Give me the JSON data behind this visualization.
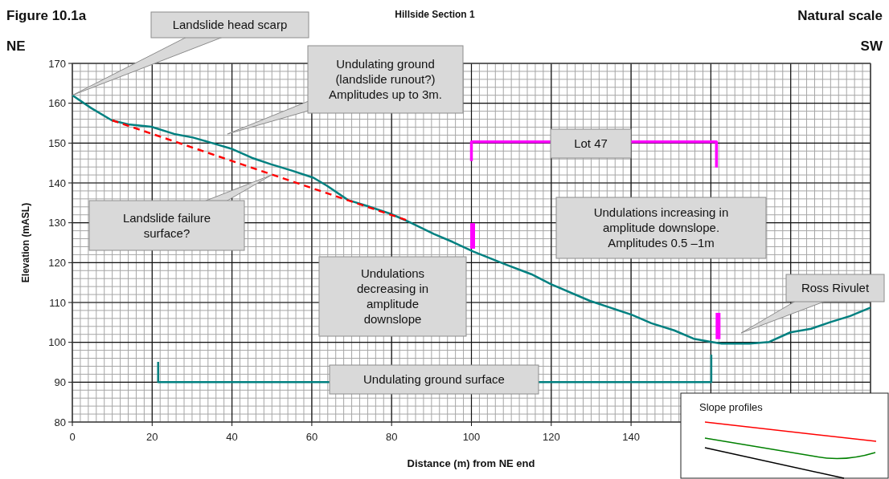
{
  "chart_data": {
    "type": "line",
    "title": "Hillside Section 1",
    "xlabel": "Distance (m) from NE end",
    "ylabel": "Elevation (mASL)",
    "xlim": [
      0,
      200
    ],
    "ylim": [
      80,
      170
    ],
    "xticks": [
      0,
      20,
      40,
      60,
      80,
      100,
      120,
      140,
      {
        "value": 160,
        "label": null
      },
      {
        "value": 180,
        "label": null
      },
      {
        "value": 200,
        "label": null
      }
    ],
    "yticks": [
      80,
      90,
      100,
      110,
      120,
      130,
      140,
      150,
      160,
      170
    ],
    "grid": true,
    "series": [
      {
        "color": "#008080",
        "x": [
          0,
          4.7,
          9.9,
          14,
          19.8,
          25.5,
          30.2,
          34.4,
          40.1,
          45,
          49.7,
          55,
          60.4,
          63.8,
          69.1,
          73.9,
          79.9,
          84.6,
          90.6,
          95.3,
          100.4,
          108.7,
          115,
          119.9,
          129.7,
          140.2,
          145.1,
          150.8,
          155.7,
          160.2,
          162.7,
          169.7,
          174.6,
          179.9,
          185.1,
          190,
          194.9,
          200
        ],
        "values": [
          162,
          158.8,
          155.7,
          154.7,
          154.1,
          152.3,
          151.4,
          150.2,
          148.5,
          146.3,
          144.7,
          143.1,
          141.3,
          139.3,
          135.7,
          134.2,
          132.2,
          130.1,
          127.2,
          125.2,
          122.8,
          119.5,
          117.1,
          114.6,
          110.4,
          106.9,
          104.8,
          103,
          100.9,
          100.1,
          99.7,
          99.7,
          100.1,
          102.5,
          103.4,
          105.1,
          106.6,
          108.7
        ]
      },
      {
        "color": "#ff0000",
        "line_style": "dashed",
        "x": [
          10,
          84.2
        ],
        "values": [
          155.7,
          130.5
        ]
      },
      {
        "color": "#ff00ff",
        "x": [
          100,
          100,
          161.4,
          161.4
        ],
        "values": [
          145.5,
          150.3,
          150.3,
          143.9
        ]
      },
      {
        "color": "#ff00ff",
        "x": [
          100.3,
          100.3
        ],
        "values": [
          123.5,
          129.9
        ]
      },
      {
        "color": "#ff00ff",
        "x": [
          161.8,
          161.8
        ],
        "values": [
          100.8,
          107.4
        ]
      },
      {
        "color": "#008080",
        "x": [
          21.5,
          21.5,
          160.1,
          160.1
        ],
        "values": [
          95.1,
          90,
          90,
          96.9
        ]
      }
    ],
    "annotations": [
      "Figure 10.1a",
      "Natural scale",
      "NE",
      "SW",
      {
        "text": "Landslide head scarp",
        "x": 0,
        "y": 162
      },
      "Undulating ground (landslide runout?) Amplitudes up to 3m.",
      "Landslide failure surface?",
      "Undulations decreasing in amplitude downslope",
      "Undulations increasing in amplitude downslope. Amplitudes 0.5 –1m",
      "Ross Rivulet",
      "Undulating ground surface",
      "Lot 47",
      "Slope profiles"
    ]
  }
}
